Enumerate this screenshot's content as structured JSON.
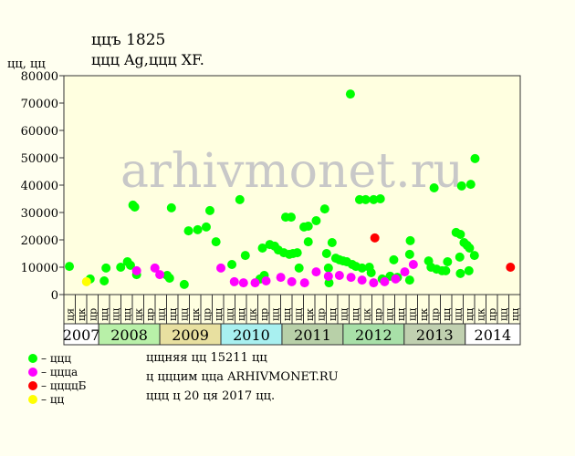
{
  "chart_data": {
    "type": "scatter",
    "title": "ццъ 1825",
    "subtitle": "ццц Ag,ццц XF.",
    "ylabel": "цц, цц",
    "watermark": "arhivmonet.ru",
    "xlim": [
      2007.43,
      2014.9
    ],
    "ylim": [
      0,
      80000
    ],
    "yticks": [
      0,
      10000,
      20000,
      30000,
      40000,
      50000,
      60000,
      70000,
      80000
    ],
    "year_bands": [
      {
        "value": 2007,
        "label": "2007",
        "color": "#ffffff"
      },
      {
        "value": 2008,
        "label": "2008",
        "color": "#b8f0a8"
      },
      {
        "value": 2009,
        "label": "2009",
        "color": "#e8e0a0"
      },
      {
        "value": 2010,
        "label": "2010",
        "color": "#a8f0f0"
      },
      {
        "value": 2011,
        "label": "2011",
        "color": "#b8d0a8"
      },
      {
        "value": 2012,
        "label": "2012",
        "color": "#a8e0a8"
      },
      {
        "value": 2013,
        "label": "2013",
        "color": "#c0d0b0"
      },
      {
        "value": 2014,
        "label": "2014",
        "color": "#ffffff"
      }
    ],
    "month_labels": [
      "ця",
      "цк",
      "цр",
      "цц",
      "цц",
      "цц",
      "цк",
      "цр",
      "цц",
      "цц",
      "цц",
      "цк",
      "цр",
      "цц",
      "цц",
      "цц",
      "цк",
      "цр",
      "цц",
      "цц",
      "цц",
      "цк",
      "цр",
      "цц",
      "цц",
      "цц",
      "цк",
      "цр",
      "цц",
      "цц",
      "цц",
      "цк",
      "цр",
      "цц",
      "цц",
      "цц",
      "цк",
      "цр",
      "цц",
      "цц"
    ],
    "series": [
      {
        "name": "– ццц",
        "color": "#00ff00",
        "x": [
          2007.52,
          2007.86,
          2008.09,
          2008.12,
          2008.36,
          2008.47,
          2008.52,
          2008.56,
          2008.59,
          2008.62,
          2009.12,
          2009.16,
          2009.19,
          2009.4,
          2009.47,
          2009.62,
          2009.76,
          2009.82,
          2009.92,
          2010.18,
          2010.31,
          2010.4,
          2010.64,
          2010.68,
          2010.71,
          2010.8,
          2010.88,
          2010.94,
          2011.03,
          2011.06,
          2011.15,
          2011.12,
          2011.18,
          2011.25,
          2011.28,
          2011.36,
          2011.43,
          2011.43,
          2011.56,
          2011.7,
          2011.73,
          2011.77,
          2011.76,
          2011.82,
          2011.88,
          2011.94,
          2012.0,
          2012.06,
          2012.12,
          2012.15,
          2012.21,
          2012.27,
          2012.31,
          2012.37,
          2012.43,
          2012.46,
          2012.5,
          2012.61,
          2012.64,
          2012.77,
          2012.83,
          2012.89,
          2013.09,
          2013.1,
          2013.09,
          2013.4,
          2013.44,
          2013.49,
          2013.53,
          2013.62,
          2013.68,
          2013.71,
          2013.85,
          2013.92,
          2013.91,
          2013.92,
          2013.94,
          2013.98,
          2014.03,
          2014.07,
          2014.06,
          2014.09,
          2014.15,
          2014.16
        ],
        "values": [
          10300,
          5700,
          5000,
          9700,
          10000,
          12000,
          10700,
          32700,
          32000,
          7300,
          7000,
          6000,
          31700,
          3700,
          23300,
          23700,
          24700,
          30700,
          19300,
          11000,
          34700,
          14300,
          5700,
          17000,
          7000,
          18300,
          17700,
          16300,
          15300,
          28300,
          28300,
          14700,
          15000,
          15300,
          9700,
          24700,
          25000,
          19300,
          27000,
          31300,
          15000,
          4300,
          9700,
          19000,
          13300,
          12700,
          12300,
          12000,
          73300,
          11000,
          10300,
          34700,
          9700,
          34700,
          10000,
          8000,
          34700,
          35000,
          5700,
          6700,
          12700,
          6300,
          5300,
          19700,
          14700,
          12300,
          10000,
          39000,
          9300,
          8700,
          8700,
          12000,
          22700,
          22000,
          13700,
          7700,
          39700,
          19000,
          18000,
          17000,
          8700,
          40300,
          14300,
          49700
        ]
      },
      {
        "name": "– цццa",
        "color": "#ff00ff",
        "x": [
          2008.62,
          2008.92,
          2009.0,
          2010.0,
          2010.22,
          2010.37,
          2010.56,
          2010.74,
          2010.98,
          2011.16,
          2011.37,
          2011.56,
          2011.76,
          2011.94,
          2012.13,
          2012.31,
          2012.5,
          2012.68,
          2012.86,
          2013.01,
          2013.15
        ],
        "values": [
          8700,
          9700,
          7300,
          9700,
          4700,
          4300,
          4300,
          5000,
          6300,
          4700,
          4300,
          8300,
          6700,
          7000,
          6300,
          5300,
          4300,
          4700,
          5700,
          8300,
          11000
        ]
      },
      {
        "name": "– ццццБ",
        "color": "#ff0000",
        "x": [
          2012.52,
          2014.74
        ],
        "values": [
          20700,
          10000
        ]
      },
      {
        "name": "– цц",
        "color": "#ffff00",
        "x": [
          2007.8
        ],
        "values": [
          4700
        ]
      }
    ],
    "notes": [
      "цщняя цц 15211 цц",
      "ц цццим ццa ARHIVMONET.RU",
      "ццц ц 20 ця 2017 цц."
    ]
  }
}
